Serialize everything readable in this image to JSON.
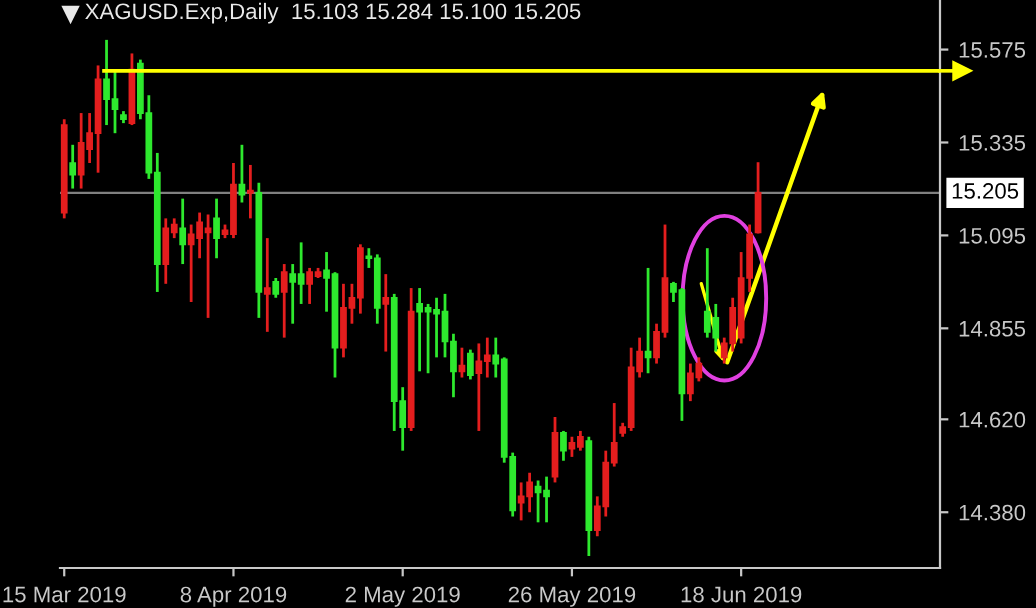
{
  "chart_data": {
    "type": "candlestick",
    "title": "XAGUSD.Exp,Daily  15.103 15.284 15.100 15.205",
    "categories": [
      "15 Mar 2019",
      null,
      null,
      null,
      null,
      null,
      null,
      null,
      null,
      null,
      null,
      null,
      null,
      null,
      null,
      null,
      null,
      null,
      null,
      null,
      "8 Apr 2019",
      null,
      null,
      null,
      null,
      null,
      null,
      null,
      null,
      null,
      null,
      null,
      null,
      null,
      null,
      null,
      null,
      null,
      null,
      null,
      "2 May 2019",
      null,
      null,
      null,
      null,
      null,
      null,
      null,
      null,
      null,
      null,
      null,
      null,
      null,
      null,
      null,
      null,
      null,
      null,
      null,
      "26 May 2019",
      null,
      null,
      null,
      null,
      null,
      null,
      null,
      null,
      null,
      null,
      null,
      null,
      null,
      null,
      null,
      null,
      null,
      null,
      null,
      "18 Jun 2019",
      null,
      null,
      null,
      null,
      null,
      null,
      null,
      null,
      null,
      null,
      null,
      null,
      null,
      null,
      null,
      null,
      null,
      null,
      null,
      null,
      null,
      null,
      null
    ],
    "ohlc": [
      [
        15.154,
        15.395,
        15.139,
        15.38
      ],
      [
        15.282,
        15.329,
        15.216,
        15.252
      ],
      [
        15.252,
        15.411,
        15.216,
        15.334
      ],
      [
        15.318,
        15.411,
        15.282,
        15.359
      ],
      [
        15.359,
        15.534,
        15.257,
        15.498
      ],
      [
        15.498,
        15.6,
        15.38,
        15.447
      ],
      [
        15.447,
        15.523,
        15.359,
        15.421
      ],
      [
        15.406,
        15.416,
        15.385,
        15.395
      ],
      [
        15.385,
        15.565,
        15.38,
        15.523
      ],
      [
        15.539,
        15.549,
        15.395,
        15.411
      ],
      [
        15.411,
        15.457,
        15.241,
        15.257
      ],
      [
        15.257,
        15.308,
        14.949,
        15.021
      ],
      [
        15.021,
        15.139,
        14.97,
        15.113
      ],
      [
        15.103,
        15.139,
        15.088,
        15.123
      ],
      [
        15.113,
        15.19,
        15.021,
        15.072
      ],
      [
        15.072,
        15.123,
        14.923,
        15.098
      ],
      [
        15.088,
        15.154,
        15.036,
        15.129
      ],
      [
        15.103,
        15.149,
        14.882,
        15.113
      ],
      [
        15.139,
        15.19,
        15.036,
        15.088
      ],
      [
        15.098,
        15.123,
        15.088,
        15.108
      ],
      [
        15.098,
        15.282,
        15.088,
        15.226
      ],
      [
        15.226,
        15.329,
        15.18,
        15.2
      ],
      [
        15.205,
        15.277,
        15.139,
        15.211
      ],
      [
        15.205,
        15.231,
        14.882,
        14.949
      ],
      [
        14.944,
        15.088,
        14.846,
        14.959
      ],
      [
        14.975,
        14.985,
        14.934,
        14.944
      ],
      [
        14.949,
        15.021,
        14.831,
        15.0
      ],
      [
        14.995,
        15.021,
        14.867,
        14.975
      ],
      [
        14.995,
        15.077,
        14.918,
        14.97
      ],
      [
        14.97,
        15.011,
        14.918,
        15.0
      ],
      [
        14.99,
        15.011,
        14.985,
        15.0
      ],
      [
        15.005,
        15.052,
        14.898,
        14.985
      ],
      [
        14.995,
        15.0,
        14.728,
        14.805
      ],
      [
        14.805,
        14.97,
        14.78,
        14.908
      ],
      [
        14.908,
        14.97,
        14.867,
        14.934
      ],
      [
        14.934,
        15.072,
        14.893,
        15.062
      ],
      [
        15.041,
        15.062,
        15.011,
        15.036
      ],
      [
        15.036,
        15.046,
        14.867,
        14.908
      ],
      [
        14.918,
        14.995,
        14.795,
        14.934
      ],
      [
        14.934,
        14.944,
        14.59,
        14.667
      ],
      [
        14.667,
        14.703,
        14.539,
        14.6
      ],
      [
        14.6,
        14.959,
        14.59,
        14.898
      ],
      [
        14.918,
        14.959,
        14.744,
        14.898
      ],
      [
        14.908,
        14.918,
        14.739,
        14.898
      ],
      [
        14.903,
        14.934,
        14.78,
        14.893
      ],
      [
        14.898,
        14.944,
        14.78,
        14.821
      ],
      [
        14.821,
        14.841,
        14.677,
        14.744
      ],
      [
        14.744,
        14.805,
        14.728,
        14.759
      ],
      [
        14.79,
        14.8,
        14.723,
        14.734
      ],
      [
        14.739,
        14.816,
        14.59,
        14.77
      ],
      [
        14.77,
        14.831,
        14.728,
        14.785
      ],
      [
        14.785,
        14.831,
        14.728,
        14.764
      ],
      [
        14.775,
        14.78,
        14.508,
        14.523
      ],
      [
        14.523,
        14.534,
        14.369,
        14.385
      ],
      [
        14.405,
        14.457,
        14.359,
        14.421
      ],
      [
        14.421,
        14.482,
        14.38,
        14.457
      ],
      [
        14.446,
        14.462,
        14.354,
        14.431
      ],
      [
        14.436,
        14.472,
        14.354,
        14.421
      ],
      [
        14.472,
        14.626,
        14.457,
        14.585
      ],
      [
        14.585,
        14.59,
        14.513,
        14.539
      ],
      [
        14.544,
        14.575,
        14.523,
        14.559
      ],
      [
        14.549,
        14.59,
        14.539,
        14.575
      ],
      [
        14.564,
        14.575,
        14.267,
        14.334
      ],
      [
        14.334,
        14.421,
        14.318,
        14.395
      ],
      [
        14.395,
        14.539,
        14.369,
        14.508
      ],
      [
        14.508,
        14.662,
        14.498,
        14.559
      ],
      [
        14.585,
        14.611,
        14.575,
        14.6
      ],
      [
        14.6,
        14.805,
        14.59,
        14.754
      ],
      [
        14.744,
        14.831,
        14.728,
        14.795
      ],
      [
        14.795,
        15.011,
        14.739,
        14.78
      ],
      [
        14.78,
        14.867,
        14.764,
        14.846
      ],
      [
        14.846,
        15.123,
        14.831,
        14.985
      ],
      [
        14.97,
        14.975,
        14.923,
        14.949
      ],
      [
        14.954,
        14.959,
        14.616,
        14.687
      ],
      [
        14.687,
        14.764,
        14.667,
        14.739
      ],
      [
        14.728,
        14.78,
        14.718,
        14.764
      ],
      [
        14.898,
        15.062,
        14.831,
        14.846
      ],
      [
        14.882,
        14.918,
        14.795,
        14.831
      ],
      [
        14.78,
        14.831,
        14.764,
        14.816
      ],
      [
        14.816,
        14.934,
        14.795,
        14.908
      ],
      [
        14.831,
        15.052,
        14.816,
        14.985
      ],
      [
        14.985,
        15.123,
        14.949,
        15.098
      ],
      [
        15.103,
        15.284,
        15.1,
        15.205
      ],
      null,
      null,
      null,
      null,
      null,
      null,
      null,
      null,
      null,
      null,
      null,
      null,
      null,
      null,
      null,
      null,
      null,
      null,
      null,
      null,
      null
    ],
    "colors": [
      "#e41e1e",
      "#2ee82e",
      "#e41e1e",
      "#e41e1e",
      "#e41e1e",
      "#2ee82e",
      "#2ee82e",
      "#2ee82e",
      "#e41e1e",
      "#2ee82e",
      "#2ee82e",
      "#2ee82e",
      "#e41e1e",
      "#e41e1e",
      "#2ee82e",
      "#e41e1e",
      "#e41e1e",
      "#e41e1e",
      "#2ee82e",
      "#e41e1e",
      "#e41e1e",
      "#2ee82e",
      "#e41e1e",
      "#2ee82e",
      "#e41e1e",
      "#2ee82e",
      "#e41e1e",
      "#2ee82e",
      "#2ee82e",
      "#e41e1e",
      "#e41e1e",
      "#2ee82e",
      "#2ee82e",
      "#e41e1e",
      "#e41e1e",
      "#e41e1e",
      "#2ee82e",
      "#2ee82e",
      "#e41e1e",
      "#2ee82e",
      "#2ee82e",
      "#e41e1e",
      "#2ee82e",
      "#2ee82e",
      "#2ee82e",
      "#2ee82e",
      "#2ee82e",
      "#e41e1e",
      "#2ee82e",
      "#e41e1e",
      "#e41e1e",
      "#2ee82e",
      "#2ee82e",
      "#2ee82e",
      "#e41e1e",
      "#e41e1e",
      "#2ee82e",
      "#2ee82e",
      "#e41e1e",
      "#2ee82e",
      "#e41e1e",
      "#e41e1e",
      "#2ee82e",
      "#e41e1e",
      "#e41e1e",
      "#e41e1e",
      "#e41e1e",
      "#e41e1e",
      "#e41e1e",
      "#2ee82e",
      "#e41e1e",
      "#e41e1e",
      "#2ee82e",
      "#2ee82e",
      "#e41e1e",
      "#e41e1e",
      "#2ee82e",
      "#2ee82e",
      "#e41e1e",
      "#e41e1e",
      "#e41e1e",
      "#e41e1e",
      "#e41e1e",
      null,
      null,
      null,
      null,
      null,
      null,
      null,
      null,
      null,
      null,
      null,
      null,
      null,
      null,
      null,
      null,
      null,
      null,
      null,
      null,
      null
    ],
    "ylim": [
      14.236,
      15.703
    ],
    "yticks": [
      {
        "value": 14.38,
        "label": "14.380"
      },
      {
        "value": 14.62,
        "label": "14.620"
      },
      14.855,
      15.095,
      15.335,
      15.575
    ],
    "ref_lines": [
      {
        "axis": "y",
        "value": 15.205,
        "label": "15.205",
        "color": "#808080"
      },
      {
        "axis": "y",
        "value": 15.52,
        "label": null,
        "color": "#ffff00"
      }
    ]
  }
}
